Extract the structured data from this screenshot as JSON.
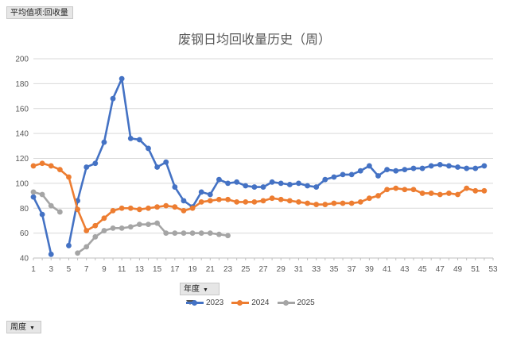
{
  "field_buttons": {
    "value_field": "平均值项:回收量",
    "year_field": "年度",
    "week_field": "周度"
  },
  "chart_data": {
    "type": "line",
    "title": "废钢日均回收量历史（周）",
    "xlabel": "",
    "ylabel": "",
    "xlim": [
      1,
      53
    ],
    "ylim": [
      40,
      200
    ],
    "x_ticks": [
      1,
      3,
      5,
      7,
      9,
      11,
      13,
      15,
      17,
      19,
      21,
      23,
      25,
      27,
      29,
      31,
      33,
      35,
      37,
      39,
      41,
      43,
      45,
      47,
      49,
      51,
      53
    ],
    "y_ticks": [
      40,
      60,
      80,
      100,
      120,
      140,
      160,
      180,
      200
    ],
    "grid": true,
    "legend_position": "bottom",
    "series": [
      {
        "name": "2023",
        "color": "#4472c4",
        "x": [
          1,
          2,
          3,
          5,
          6,
          7,
          8,
          9,
          10,
          11,
          12,
          13,
          14,
          15,
          16,
          17,
          18,
          19,
          20,
          21,
          22,
          23,
          24,
          25,
          26,
          27,
          28,
          29,
          30,
          31,
          32,
          33,
          34,
          35,
          36,
          37,
          38,
          39,
          40,
          41,
          42,
          43,
          44,
          45,
          46,
          47,
          48,
          49,
          50,
          51,
          52
        ],
        "values": [
          89,
          75,
          43,
          50,
          86,
          113,
          116,
          133,
          168,
          184,
          136,
          135,
          128,
          113,
          117,
          97,
          86,
          81,
          93,
          91,
          103,
          100,
          101,
          98,
          97,
          97,
          101,
          100,
          99,
          100,
          98,
          97,
          103,
          105,
          107,
          107,
          110,
          114,
          106,
          111,
          110,
          111,
          112,
          112,
          114,
          115,
          114,
          113,
          112,
          112,
          114
        ]
      },
      {
        "name": "2024",
        "color": "#ed7d31",
        "x": [
          1,
          2,
          3,
          4,
          5,
          6,
          7,
          8,
          9,
          10,
          11,
          12,
          13,
          14,
          15,
          16,
          17,
          18,
          19,
          20,
          21,
          22,
          23,
          24,
          25,
          26,
          27,
          28,
          29,
          30,
          31,
          32,
          33,
          34,
          35,
          36,
          37,
          38,
          39,
          40,
          41,
          42,
          43,
          44,
          45,
          46,
          47,
          48,
          49,
          50,
          51,
          52
        ],
        "values": [
          114,
          116,
          114,
          111,
          105,
          79,
          62,
          66,
          72,
          78,
          80,
          80,
          79,
          80,
          81,
          82,
          81,
          78,
          80,
          85,
          86,
          87,
          87,
          85,
          85,
          85,
          86,
          88,
          87,
          86,
          85,
          84,
          83,
          83,
          84,
          84,
          84,
          85,
          88,
          90,
          95,
          96,
          95,
          95,
          92,
          92,
          91,
          92,
          91,
          96,
          94,
          94
        ]
      },
      {
        "name": "2025",
        "color": "#a5a5a5",
        "x": [
          1,
          2,
          3,
          4,
          6,
          7,
          8,
          9,
          10,
          11,
          12,
          13,
          14,
          15,
          16,
          17,
          18,
          19,
          20,
          21,
          22,
          23
        ],
        "values": [
          93,
          91,
          82,
          77,
          44,
          49,
          57,
          62,
          64,
          64,
          65,
          67,
          67,
          68,
          60,
          60,
          60,
          60,
          60,
          60,
          59,
          58
        ]
      }
    ]
  }
}
